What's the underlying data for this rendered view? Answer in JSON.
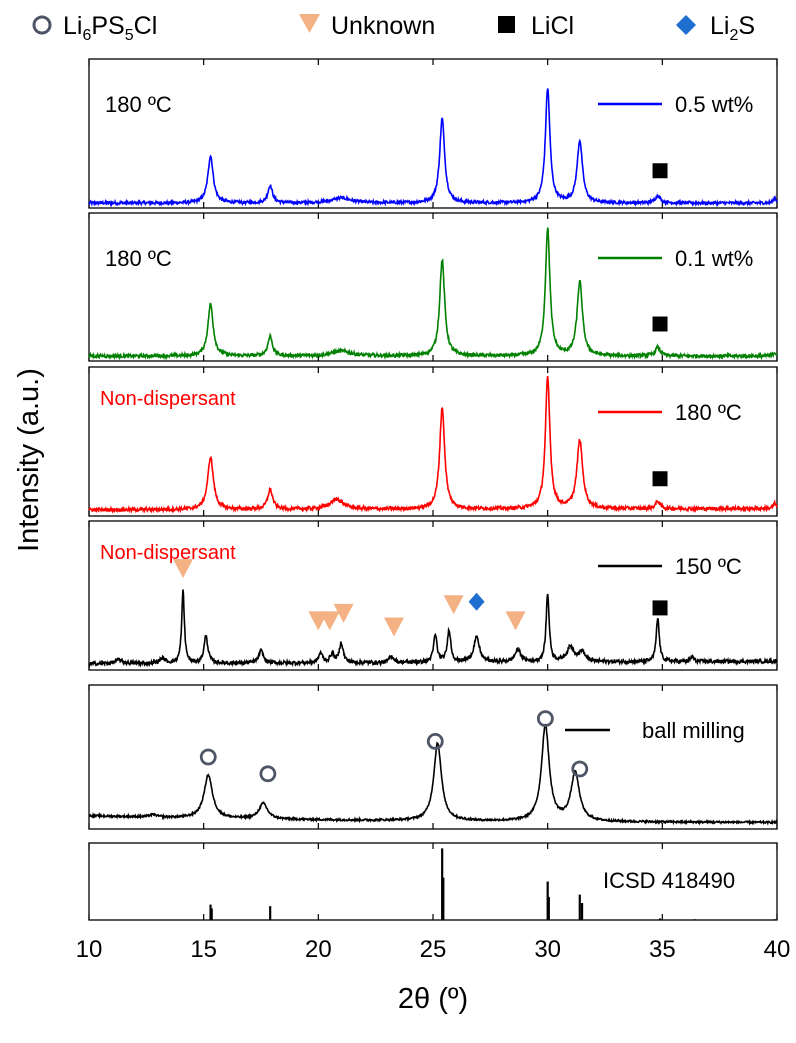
{
  "chart_data": {
    "type": "line",
    "x_label": "2θ (º)",
    "y_label": "Intensity (a.u.)",
    "xlim": [
      10,
      40
    ],
    "x_ticks": [
      "10",
      "15",
      "20",
      "25",
      "30",
      "35",
      "40"
    ],
    "legend": [
      {
        "name": "Li6PS5Cl",
        "marker": "circle-open",
        "color": "#4d5566"
      },
      {
        "name": "Unknown",
        "marker": "triangle-down",
        "color": "#f4b183"
      },
      {
        "name": "LiCl",
        "marker": "square",
        "color": "#000000"
      },
      {
        "name": "Li2S",
        "marker": "diamond",
        "color": "#1f6fd1"
      }
    ],
    "panels": [
      {
        "left_label": "180 ºC",
        "left_label_color": "#000000",
        "series_name": "0.5 wt%",
        "color": "#0000ff",
        "ylim": [
          0,
          1.2
        ],
        "peaks": [
          [
            15.3,
            0.38,
            0.14
          ],
          [
            17.9,
            0.14,
            0.12
          ],
          [
            21,
            0.04,
            0.5
          ],
          [
            25.4,
            0.68,
            0.13
          ],
          [
            30,
            0.92,
            0.12
          ],
          [
            31.4,
            0.5,
            0.14
          ],
          [
            34.8,
            0.06,
            0.13
          ],
          [
            39.9,
            0.04,
            0.08
          ]
        ],
        "baseline": [
          0.04,
          0.0
        ],
        "noise": 0.012,
        "decay": 0,
        "markers": [
          {
            "type": "LiCl",
            "x": 34.9,
            "y": 0.3
          }
        ]
      },
      {
        "left_label": "180 ºC",
        "left_label_color": "#000000",
        "series_name": "0.1 wt%",
        "color": "#008000",
        "ylim": [
          0,
          1.2
        ],
        "peaks": [
          [
            15.3,
            0.42,
            0.14
          ],
          [
            17.9,
            0.16,
            0.12
          ],
          [
            21,
            0.04,
            0.5
          ],
          [
            25.4,
            0.78,
            0.13
          ],
          [
            30,
            1.03,
            0.12
          ],
          [
            31.4,
            0.6,
            0.14
          ],
          [
            34.8,
            0.07,
            0.13
          ],
          [
            39.9,
            0.03,
            0.08
          ]
        ],
        "baseline": [
          0.04,
          0.0
        ],
        "noise": 0.014,
        "decay": 0,
        "markers": [
          {
            "type": "LiCl",
            "x": 34.9,
            "y": 0.3
          }
        ]
      },
      {
        "left_label": "Non-dispersant",
        "left_label_color": "#ff0000",
        "series_name": "180 ºC",
        "color": "#ff0000",
        "ylim": [
          0,
          1.2
        ],
        "peaks": [
          [
            15.3,
            0.42,
            0.15
          ],
          [
            17.9,
            0.16,
            0.13
          ],
          [
            20.8,
            0.08,
            0.35
          ],
          [
            25.4,
            0.82,
            0.13
          ],
          [
            30,
            1.05,
            0.12
          ],
          [
            31.4,
            0.55,
            0.15
          ],
          [
            34.8,
            0.06,
            0.12
          ],
          [
            39.9,
            0.04,
            0.08
          ]
        ],
        "baseline": [
          0.05,
          0.01
        ],
        "noise": 0.014,
        "decay": 0,
        "markers": [
          {
            "type": "LiCl",
            "x": 34.9,
            "y": 0.3
          }
        ]
      },
      {
        "left_label": "Non-dispersant",
        "left_label_color": "#ff0000",
        "series_name": "150 ºC",
        "color": "#000000",
        "ylim": [
          0,
          1.2
        ],
        "peaks": [
          [
            11.3,
            0.03,
            0.2
          ],
          [
            13.2,
            0.04,
            0.15
          ],
          [
            14.1,
            0.58,
            0.07
          ],
          [
            15.1,
            0.22,
            0.1
          ],
          [
            17.5,
            0.1,
            0.12
          ],
          [
            20.1,
            0.08,
            0.1
          ],
          [
            20.6,
            0.07,
            0.1
          ],
          [
            21.0,
            0.16,
            0.1
          ],
          [
            23.2,
            0.05,
            0.12
          ],
          [
            25.1,
            0.22,
            0.09
          ],
          [
            25.7,
            0.26,
            0.09
          ],
          [
            26.9,
            0.2,
            0.15
          ],
          [
            28.7,
            0.1,
            0.15
          ],
          [
            30.0,
            0.55,
            0.08
          ],
          [
            31.0,
            0.12,
            0.2
          ],
          [
            31.5,
            0.08,
            0.15
          ],
          [
            34.8,
            0.35,
            0.08
          ],
          [
            36.3,
            0.04,
            0.08
          ]
        ],
        "baseline": [
          0.05,
          0.02
        ],
        "noise": 0.015,
        "decay": 0,
        "markers": [
          {
            "type": "Unknown",
            "x": 14.1,
            "y": 0.82
          },
          {
            "type": "Unknown",
            "x": 20.0,
            "y": 0.4
          },
          {
            "type": "Unknown",
            "x": 20.5,
            "y": 0.4
          },
          {
            "type": "Unknown",
            "x": 21.1,
            "y": 0.46
          },
          {
            "type": "Unknown",
            "x": 23.3,
            "y": 0.35
          },
          {
            "type": "Unknown",
            "x": 25.9,
            "y": 0.53
          },
          {
            "type": "Li2S",
            "x": 26.9,
            "y": 0.55
          },
          {
            "type": "Unknown",
            "x": 28.6,
            "y": 0.4
          },
          {
            "type": "LiCl",
            "x": 34.9,
            "y": 0.5
          }
        ]
      },
      {
        "left_label": "",
        "left_label_color": "#000000",
        "series_name": "ball milling",
        "color": "#000000",
        "ylim": [
          0,
          1.2
        ],
        "peaks": [
          [
            12.8,
            0.02,
            0.2
          ],
          [
            15.2,
            0.36,
            0.22
          ],
          [
            17.6,
            0.13,
            0.22
          ],
          [
            25.2,
            0.65,
            0.2
          ],
          [
            29.9,
            0.8,
            0.2
          ],
          [
            31.2,
            0.4,
            0.22
          ]
        ],
        "baseline": [
          0.05,
          0.0
        ],
        "noise": 0.008,
        "decay": 0.06,
        "markers": [
          {
            "type": "Li6PS5Cl",
            "x": 15.2,
            "y": 0.6
          },
          {
            "type": "Li6PS5Cl",
            "x": 17.8,
            "y": 0.46
          },
          {
            "type": "Li6PS5Cl",
            "x": 25.1,
            "y": 0.73
          },
          {
            "type": "Li6PS5Cl",
            "x": 29.9,
            "y": 0.92
          },
          {
            "type": "Li6PS5Cl",
            "x": 31.4,
            "y": 0.5
          }
        ]
      },
      {
        "left_label": "",
        "left_label_color": "#000000",
        "series_name": "ICSD 418490",
        "style": "sticks",
        "color": "#000000",
        "ylim": [
          0,
          1.0
        ],
        "sticks": [
          [
            15.3,
            0.2
          ],
          [
            15.35,
            0.15
          ],
          [
            17.9,
            0.18
          ],
          [
            25.4,
            0.93
          ],
          [
            25.45,
            0.55
          ],
          [
            30.0,
            0.5
          ],
          [
            30.05,
            0.3
          ],
          [
            31.4,
            0.33
          ],
          [
            31.5,
            0.22
          ],
          [
            34.9,
            0.02
          ],
          [
            36.4,
            0.01
          ],
          [
            39.9,
            0.01
          ]
        ],
        "markers": []
      }
    ]
  }
}
